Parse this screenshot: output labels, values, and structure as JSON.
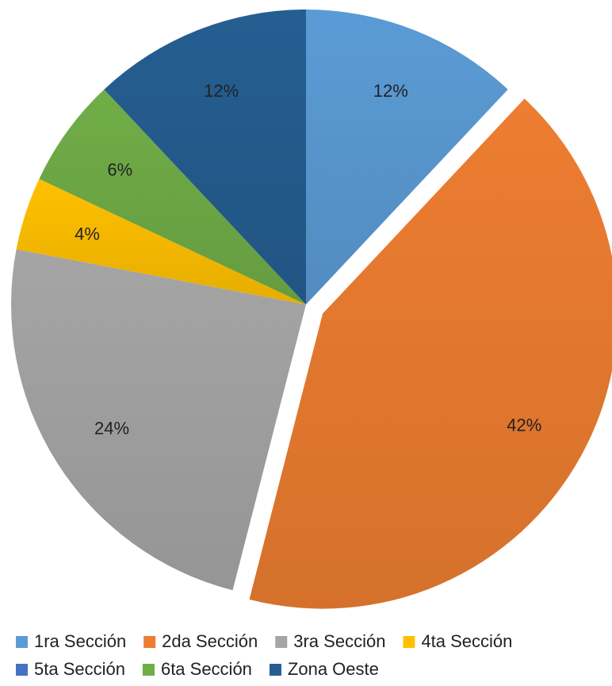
{
  "chart_data": {
    "type": "pie",
    "title": "",
    "categories": [
      "1ra Sección",
      "2da Sección",
      "3ra Sección",
      "4ta Sección",
      "5ta Sección",
      "6ta Sección",
      "Zona Oeste"
    ],
    "values": [
      12,
      42,
      24,
      4,
      0,
      6,
      12
    ],
    "labels": [
      "12%",
      "42%",
      "24%",
      "4%",
      "",
      "6%",
      "12%"
    ],
    "colors": [
      "#5B9BD5",
      "#ED7D31",
      "#A5A5A5",
      "#FFC000",
      "#4472C4",
      "#70AD47",
      "#255E91"
    ],
    "exploded": [
      "2da Sección"
    ],
    "legend_position": "bottom"
  }
}
